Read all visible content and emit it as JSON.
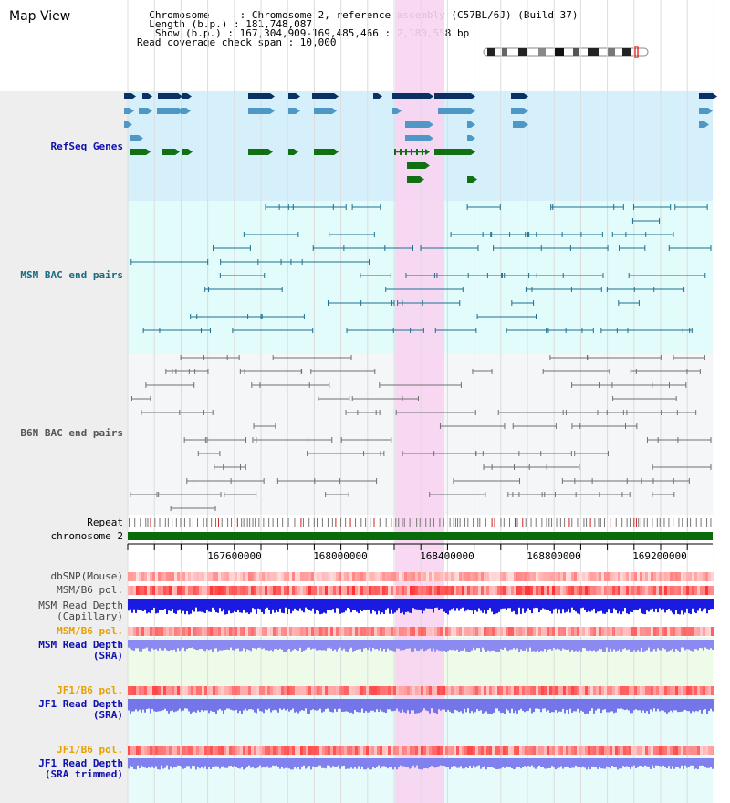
{
  "title": "Map View",
  "header": {
    "lines": [
      "  Chromosome     : Chromosome 2, reference assembly (C57BL/6J) (Build 37)",
      "  Length (b.p.) : 181,748,087",
      "   Show (b.p.) : 167,304,909-169,485,466 : 2,180,558 bp",
      "Read coverage check span : 10,000"
    ]
  },
  "tracks": {
    "refseq": "RefSeq Genes",
    "msm_bac": "MSM BAC end pairs",
    "b6n_bac": "B6N BAC end pairs",
    "repeat": "Repeat",
    "chromosome": "chromosome 2",
    "dbsnp": "dbSNP(Mouse)",
    "msm_pol": "MSM/B6 pol.",
    "msm_depth_cap_1": "MSM Read Depth",
    "msm_depth_cap_2": "(Capillary)",
    "msm_pol_sra": "MSM/B6 pol.",
    "msm_depth_sra_1": "MSM Read Depth",
    "msm_depth_sra_2": "(SRA)",
    "jf1_pol": "JF1/B6 pol.",
    "jf1_depth_1": "JF1 Read Depth",
    "jf1_depth_2": "(SRA)",
    "jf1_pol_tr": "JF1/B6 pol.",
    "jf1_depth_tr_1": "JF1 Read Depth",
    "jf1_depth_tr_2": "(SRA trimmed)"
  },
  "axis": {
    "ticks": [
      "167600000",
      "168000000",
      "168400000",
      "168800000",
      "169200000"
    ]
  },
  "colors": {
    "refseq_bg": "#d6f0fb",
    "msm_bg": "#e2fbfb",
    "b6n_bg": "#f4f6f8",
    "highlight": "#f8d4f2",
    "gene_dark": "#0b3163",
    "gene_light": "#4f98c6",
    "gene_green": "#117011",
    "msm_line": "#1f6f8f",
    "b6n_line": "#707070",
    "chrom_green": "#0a6b0a",
    "label_blue": "#1010b0",
    "label_teal": "#1a6a80",
    "label_orange": "#e8a000"
  }
}
